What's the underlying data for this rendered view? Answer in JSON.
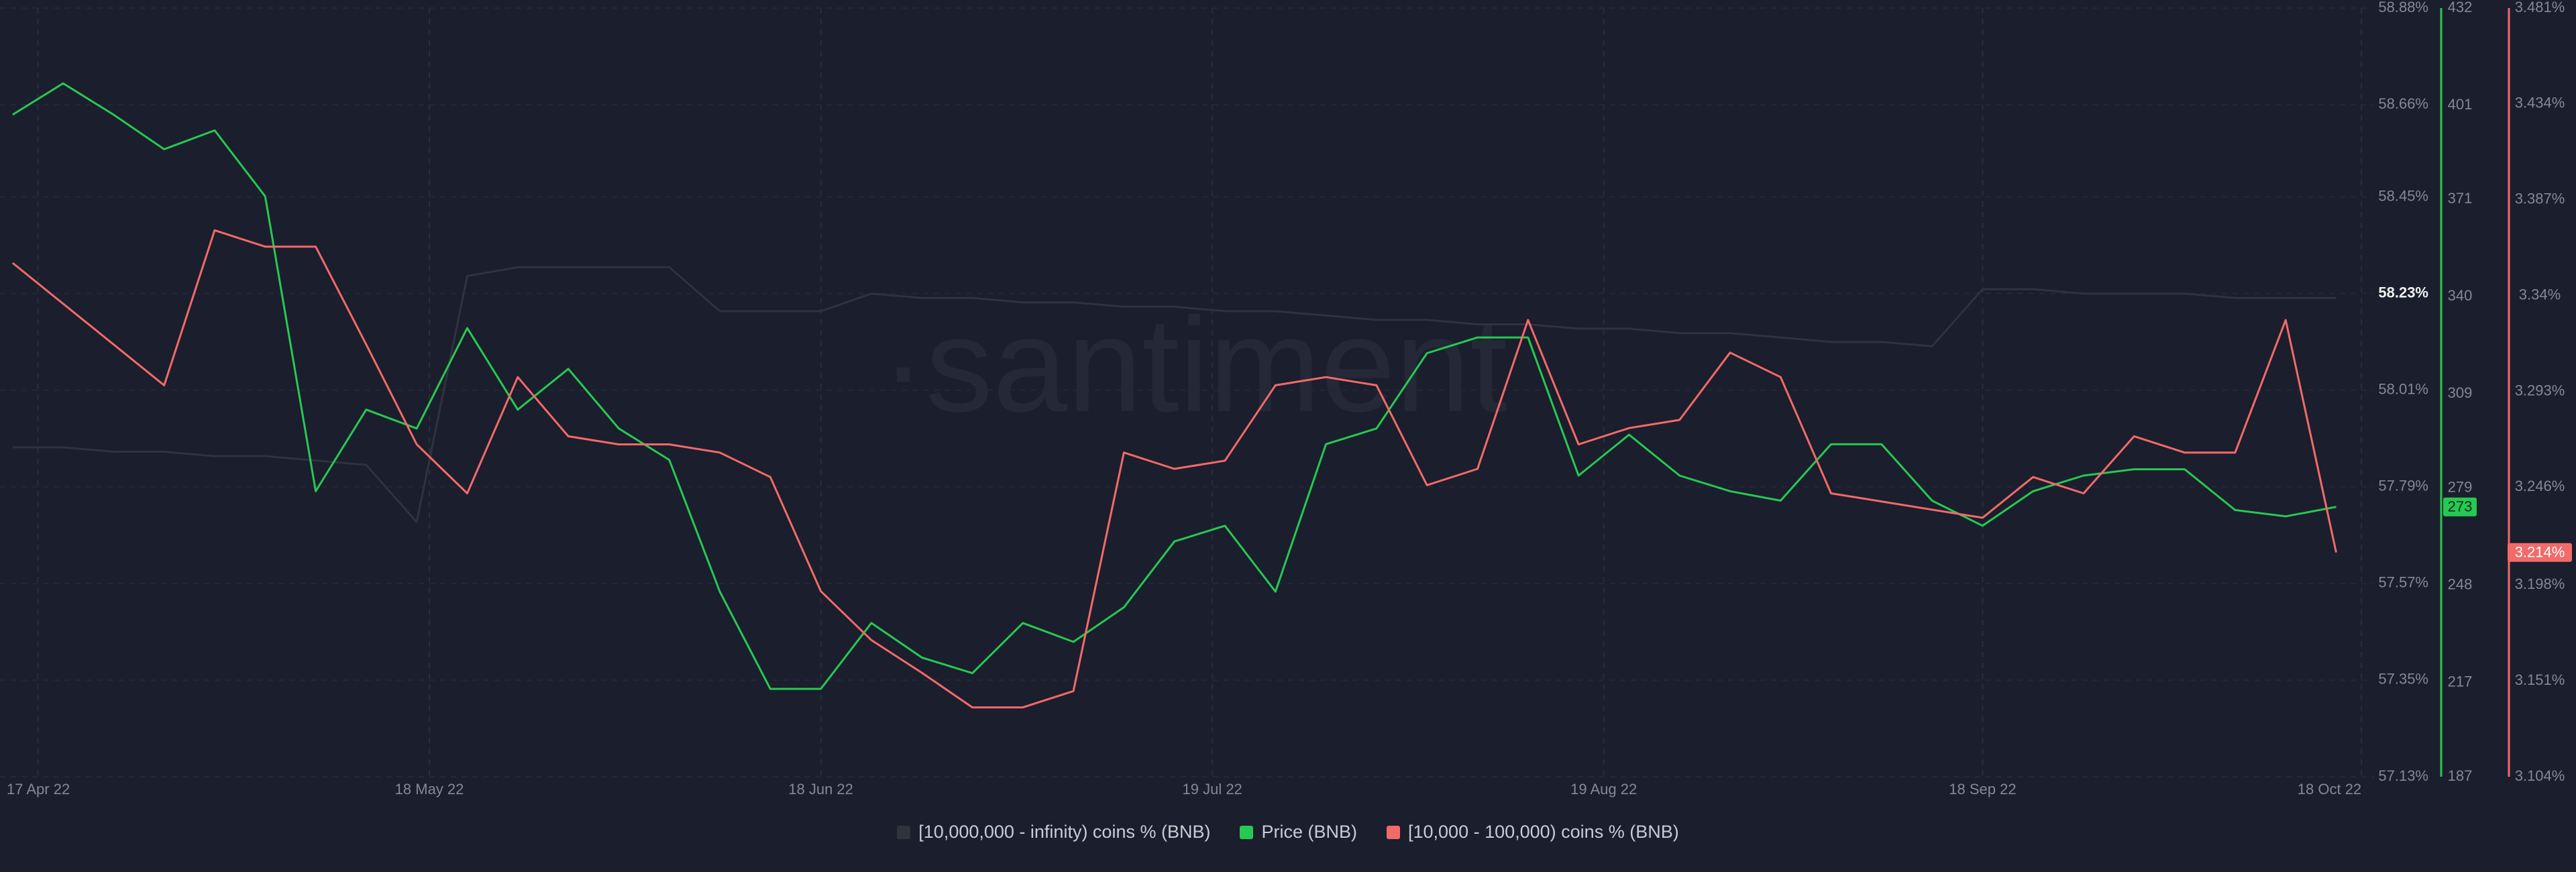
{
  "chart_data": {
    "type": "line",
    "watermark": "·santiment",
    "grid": true,
    "x": [
      "2022-04-15",
      "2022-04-19",
      "2022-04-23",
      "2022-04-27",
      "2022-05-01",
      "2022-05-05",
      "2022-05-09",
      "2022-05-13",
      "2022-05-17",
      "2022-05-21",
      "2022-05-25",
      "2022-05-29",
      "2022-06-02",
      "2022-06-06",
      "2022-06-10",
      "2022-06-14",
      "2022-06-18",
      "2022-06-22",
      "2022-06-26",
      "2022-06-30",
      "2022-07-04",
      "2022-07-08",
      "2022-07-12",
      "2022-07-16",
      "2022-07-20",
      "2022-07-24",
      "2022-07-28",
      "2022-08-01",
      "2022-08-05",
      "2022-08-09",
      "2022-08-13",
      "2022-08-17",
      "2022-08-21",
      "2022-08-25",
      "2022-08-29",
      "2022-09-02",
      "2022-09-06",
      "2022-09-10",
      "2022-09-14",
      "2022-09-18",
      "2022-09-22",
      "2022-09-26",
      "2022-09-30",
      "2022-10-04",
      "2022-10-08",
      "2022-10-12",
      "2022-10-16"
    ],
    "xlim": [
      "2022-04-14",
      "2022-10-19"
    ],
    "xticks": [
      {
        "value": "2022-04-17",
        "label": "17 Apr 22"
      },
      {
        "value": "2022-05-18",
        "label": "18 May 22"
      },
      {
        "value": "2022-06-18",
        "label": "18 Jun 22"
      },
      {
        "value": "2022-07-19",
        "label": "19 Jul 22"
      },
      {
        "value": "2022-08-19",
        "label": "19 Aug 22"
      },
      {
        "value": "2022-09-18",
        "label": "18 Sep 22"
      },
      {
        "value": "2022-10-18",
        "label": "18 Oct 22"
      }
    ],
    "ylim": [
      57.13,
      58.88
    ],
    "yticks": [
      {
        "value": 58.88,
        "label": "58.88%"
      },
      {
        "value": 58.66,
        "label": "58.66%"
      },
      {
        "value": 58.45,
        "label": "58.45%"
      },
      {
        "value": 58.23,
        "label": "58.23%"
      },
      {
        "value": 58.01,
        "label": "58.01%"
      },
      {
        "value": 57.79,
        "label": "57.79%"
      },
      {
        "value": 57.57,
        "label": "57.57%"
      },
      {
        "value": 57.35,
        "label": "57.35%"
      },
      {
        "value": 57.13,
        "label": "57.13%"
      }
    ],
    "y2lim": [
      187,
      432
    ],
    "y2ticks": [
      432,
      401,
      371,
      340,
      309,
      279,
      248,
      217,
      187
    ],
    "y3lim": [
      3.104,
      3.481
    ],
    "y3ticks": [
      {
        "value": 3.481,
        "label": "3.481%"
      },
      {
        "value": 3.434,
        "label": "3.434%"
      },
      {
        "value": 3.387,
        "label": "3.387%"
      },
      {
        "value": 3.34,
        "label": "3.34%"
      },
      {
        "value": 3.293,
        "label": "3.293%"
      },
      {
        "value": 3.246,
        "label": "3.246%"
      },
      {
        "value": 3.198,
        "label": "3.198%"
      },
      {
        "value": 3.151,
        "label": "3.151%"
      },
      {
        "value": 3.104,
        "label": "3.104%"
      }
    ],
    "series": [
      {
        "name": "[10,000,000 - infinity) coins % (BNB)",
        "color": "#30323d",
        "axis": "y",
        "values": [
          57.88,
          57.88,
          57.87,
          57.87,
          57.86,
          57.86,
          57.85,
          57.84,
          57.71,
          58.27,
          58.29,
          58.29,
          58.29,
          58.29,
          58.19,
          58.19,
          58.19,
          58.23,
          58.22,
          58.22,
          58.21,
          58.21,
          58.2,
          58.2,
          58.19,
          58.19,
          58.18,
          58.17,
          58.17,
          58.16,
          58.16,
          58.15,
          58.15,
          58.14,
          58.14,
          58.13,
          58.12,
          58.12,
          58.11,
          58.24,
          58.24,
          58.23,
          58.23,
          58.23,
          58.22,
          58.22,
          58.22
        ]
      },
      {
        "name": "Price (BNB)",
        "color": "#26c953",
        "axis": "y2",
        "last_value": 273,
        "values": [
          398,
          408,
          398,
          387,
          393,
          372,
          278,
          304,
          298,
          330,
          304,
          317,
          298,
          288,
          246,
          215,
          215,
          236,
          225,
          220,
          236,
          230,
          241,
          262,
          267,
          246,
          293,
          298,
          322,
          327,
          327,
          283,
          296,
          283,
          278,
          275,
          293,
          293,
          275,
          267,
          278,
          283,
          285,
          285,
          272,
          270,
          273
        ]
      },
      {
        "name": "[10,000 - 100,000) coins % (BNB)",
        "color": "#f26a6a",
        "axis": "y3",
        "last_value": {
          "value": 3.214,
          "label": "3.214%"
        },
        "values": [
          3.356,
          3.336,
          3.316,
          3.296,
          3.372,
          3.364,
          3.364,
          3.316,
          3.267,
          3.243,
          3.3,
          3.271,
          3.267,
          3.267,
          3.263,
          3.251,
          3.195,
          3.171,
          3.155,
          3.138,
          3.138,
          3.146,
          3.263,
          3.255,
          3.259,
          3.296,
          3.3,
          3.296,
          3.247,
          3.255,
          3.328,
          3.267,
          3.275,
          3.279,
          3.312,
          3.3,
          3.243,
          3.239,
          3.235,
          3.231,
          3.251,
          3.243,
          3.271,
          3.263,
          3.263,
          3.328,
          3.214
        ]
      }
    ]
  }
}
